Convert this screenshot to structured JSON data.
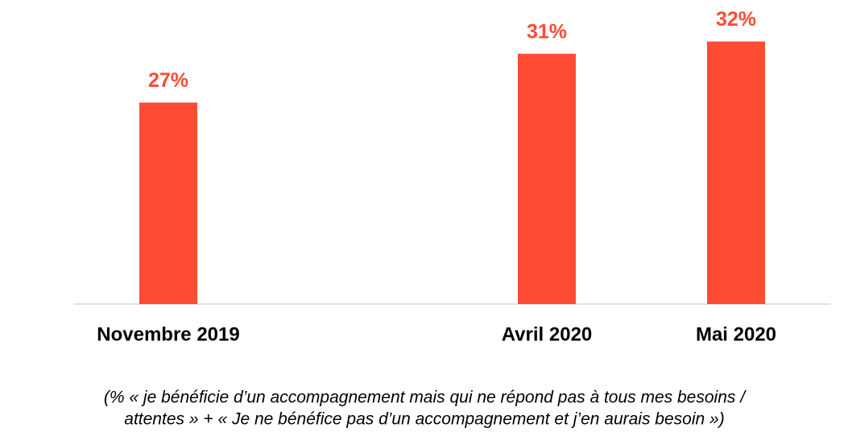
{
  "chart_data": {
    "type": "bar",
    "categories": [
      "Novembre 2019",
      null,
      "Avril 2020",
      "Mai 2020"
    ],
    "values": [
      27,
      null,
      31,
      32
    ],
    "value_labels": [
      "27%",
      null,
      "31%",
      "32%"
    ],
    "color": "#ff4b33",
    "ylim": [
      10.5,
      35.4
    ],
    "note": [
      "(% « je bénéficie d’un accompagnement mais qui ne répond pas à tous mes besoins /",
      "attentes » + «  Je ne bénéfice pas d’un accompagnement et j’en aurais besoin »)"
    ]
  }
}
